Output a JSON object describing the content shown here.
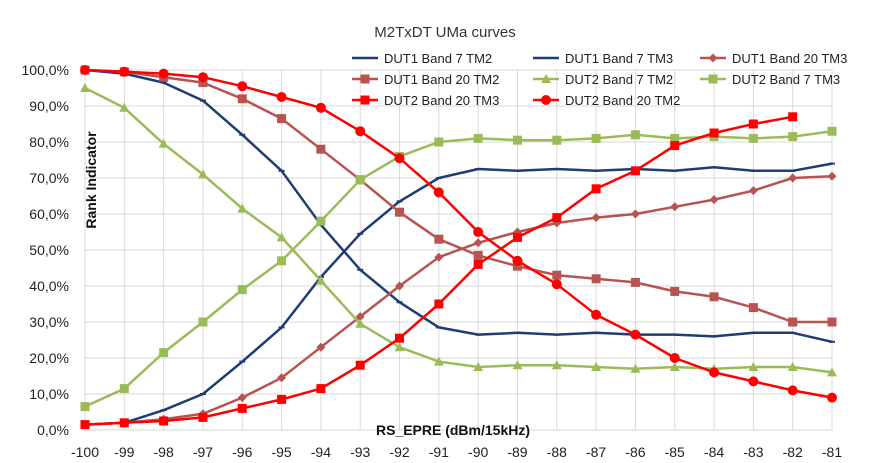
{
  "chart_data": {
    "type": "line",
    "title": "M2TxDT UMa curves",
    "xlabel": "RS_EPRE (dBm/15kHz)",
    "ylabel": "Rank Indicator",
    "x": [
      -100,
      -99,
      -98,
      -97,
      -96,
      -95,
      -94,
      -93,
      -92,
      -91,
      -90,
      -89,
      -88,
      -87,
      -86,
      -85,
      -84,
      -83,
      -82,
      -81
    ],
    "x_tick_labels": [
      "-100",
      "-99",
      "-98",
      "-97",
      "-96",
      "-95",
      "-94",
      "-93",
      "-92",
      "-91",
      "-90",
      "-89",
      "-88",
      "-87",
      "-86",
      "-85",
      "-84",
      "-83",
      "-82",
      "-81"
    ],
    "ylim": [
      0,
      100
    ],
    "y_ticks": [
      0,
      10,
      20,
      30,
      40,
      50,
      60,
      70,
      80,
      90,
      100
    ],
    "y_tick_labels": [
      "0,0%",
      "10,0%",
      "20,0%",
      "30,0%",
      "40,0%",
      "50,0%",
      "60,0%",
      "70,0%",
      "80,0%",
      "90,0%",
      "100,0%"
    ],
    "grid": true,
    "legend_position": "top-right",
    "series": [
      {
        "name": "DUT1 Band 7 TM2",
        "color": "#1f3d73",
        "marker": "dash",
        "values": [
          100,
          99,
          96.5,
          91.5,
          82,
          72,
          57,
          44.5,
          35.5,
          28.5,
          26.5,
          27,
          26.5,
          27,
          26.5,
          26.5,
          26,
          27,
          27,
          24.5
        ]
      },
      {
        "name": "DUT1 Band 7 TM3",
        "color": "#1f3d73",
        "marker": "dash",
        "values": [
          1.5,
          2,
          5.5,
          10,
          19,
          28.5,
          42.5,
          54.5,
          63.5,
          70,
          72.5,
          72,
          72.5,
          72,
          72.5,
          72,
          73,
          72,
          72,
          74
        ]
      },
      {
        "name": "DUT1 Band 20 TM3",
        "color": "#b85450",
        "marker": "diamond",
        "values": [
          1.5,
          2,
          3,
          4.5,
          9,
          14.5,
          23,
          31.5,
          40,
          48,
          52,
          55,
          57.5,
          59,
          60,
          62,
          64,
          66.5,
          70,
          70.5
        ]
      },
      {
        "name": "DUT1 Band 20 TM2",
        "color": "#b85450",
        "marker": "square",
        "values": [
          100,
          99.5,
          98,
          96.5,
          92,
          86.5,
          78,
          69.5,
          60.5,
          53,
          48.5,
          45.5,
          43,
          42,
          41,
          38.5,
          37,
          34,
          30,
          30
        ]
      },
      {
        "name": "DUT2 Band 7 TM2",
        "color": "#9bbb59",
        "marker": "triangle",
        "values": [
          95,
          89.5,
          79.5,
          71,
          61.5,
          53.5,
          41.5,
          29.5,
          23,
          19,
          17.5,
          18,
          18,
          17.5,
          17,
          17.5,
          17,
          17.5,
          17.5,
          16
        ]
      },
      {
        "name": "DUT2 Band 7 TM3",
        "color": "#9bbb59",
        "marker": "square",
        "values": [
          6.5,
          11.5,
          21.5,
          30,
          39,
          47,
          58,
          69.5,
          76,
          80,
          81,
          80.5,
          80.5,
          81,
          82,
          81,
          81.5,
          81,
          81.5,
          83
        ]
      },
      {
        "name": "DUT2 Band 20 TM3",
        "color": "#ff0000",
        "marker": "square",
        "values": [
          1.5,
          2,
          2.5,
          3.5,
          6,
          8.5,
          11.5,
          18,
          25.5,
          35,
          46,
          53.5,
          59,
          67,
          72,
          79,
          82.5,
          85,
          87,
          null
        ]
      },
      {
        "name": "DUT2 Band 20 TM2",
        "color": "#ff0000",
        "marker": "circle",
        "values": [
          100,
          99.5,
          99,
          98,
          95.5,
          92.5,
          89.5,
          83,
          75.5,
          66,
          55,
          47,
          40.5,
          32,
          26.5,
          20,
          16,
          13.5,
          11,
          9
        ]
      }
    ]
  }
}
